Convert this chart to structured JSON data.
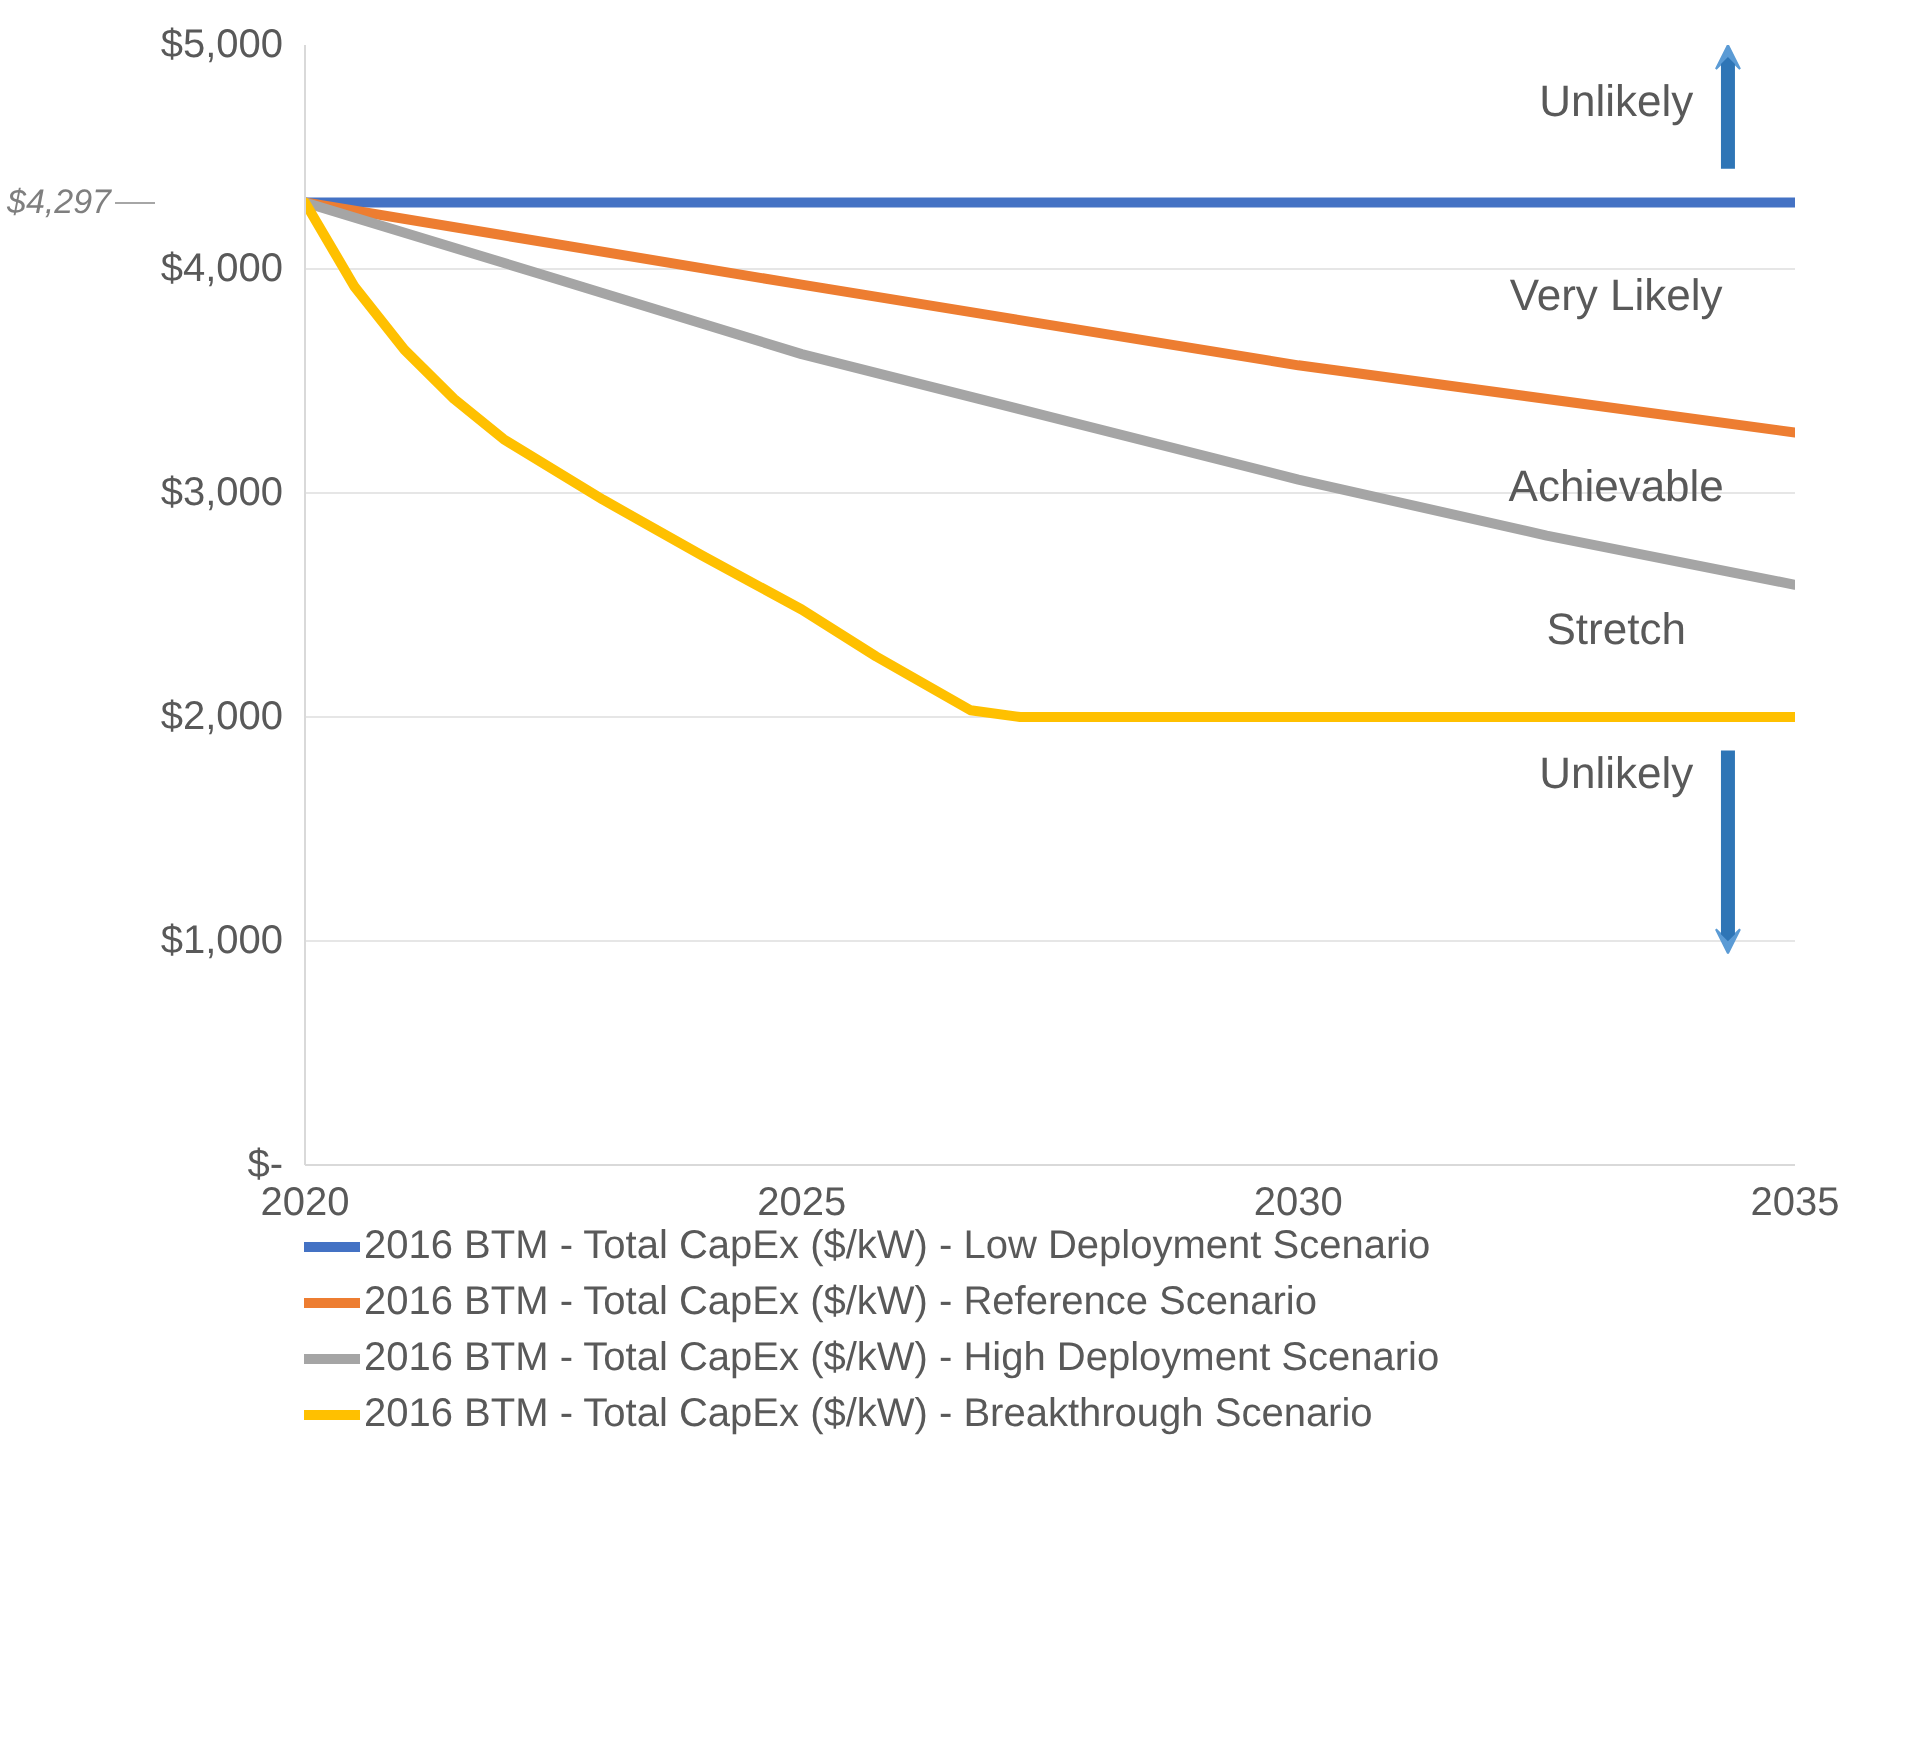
{
  "chart_data": {
    "type": "line",
    "x": [
      2020,
      2025,
      2030,
      2035
    ],
    "series": [
      {
        "name": "2016 BTM - Total CapEx ($/kW) - Low Deployment Scenario",
        "color": "#4472c4",
        "values": [
          4297,
          4297,
          4297,
          4297
        ]
      },
      {
        "name": "2016 BTM - Total CapEx ($/kW) - Reference Scenario",
        "color": "#ed7d31",
        "values": [
          4297,
          3930,
          3570,
          3270
        ]
      },
      {
        "name": "2016 BTM - Total CapEx ($/kW) - High Deployment Scenario",
        "color": "#a5a5a5",
        "x": [
          2020,
          2022.5,
          2025,
          2027.5,
          2030,
          2032.5,
          2035
        ],
        "values": [
          4297,
          3960,
          3620,
          3340,
          3060,
          2810,
          2590
        ]
      },
      {
        "name": "2016 BTM - Total CapEx ($/kW) - Breakthrough Scenario",
        "color": "#ffc000",
        "x": [
          2020,
          2020.5,
          2021,
          2021.5,
          2022,
          2023,
          2024,
          2024.5,
          2025,
          2025.75,
          2026.7,
          2027.2,
          2027.5,
          2030,
          2035
        ],
        "values": [
          4297,
          3920,
          3640,
          3420,
          3240,
          2970,
          2720,
          2600,
          2480,
          2270,
          2030,
          2000,
          2000,
          2000,
          2000
        ]
      }
    ],
    "xlim": [
      2020,
      2035
    ],
    "xticks": [
      2020,
      2025,
      2030,
      2035
    ],
    "ylim": [
      0,
      5000
    ],
    "yticks": [
      {
        "value": 0,
        "label": "$-"
      },
      {
        "value": 1000,
        "label": "$1,000"
      },
      {
        "value": 2000,
        "label": "$2,000"
      },
      {
        "value": 3000,
        "label": "$3,000"
      },
      {
        "value": 4000,
        "label": "$4,000"
      },
      {
        "value": 5000,
        "label": "$5,000"
      }
    ],
    "grid": "y",
    "legend": "bottom",
    "marker": "none",
    "line_style": "solid",
    "annotations": [
      "$4,297",
      "Unlikely",
      "Very Likely",
      "Achievable",
      "Stretch",
      "Unlikely"
    ]
  }
}
